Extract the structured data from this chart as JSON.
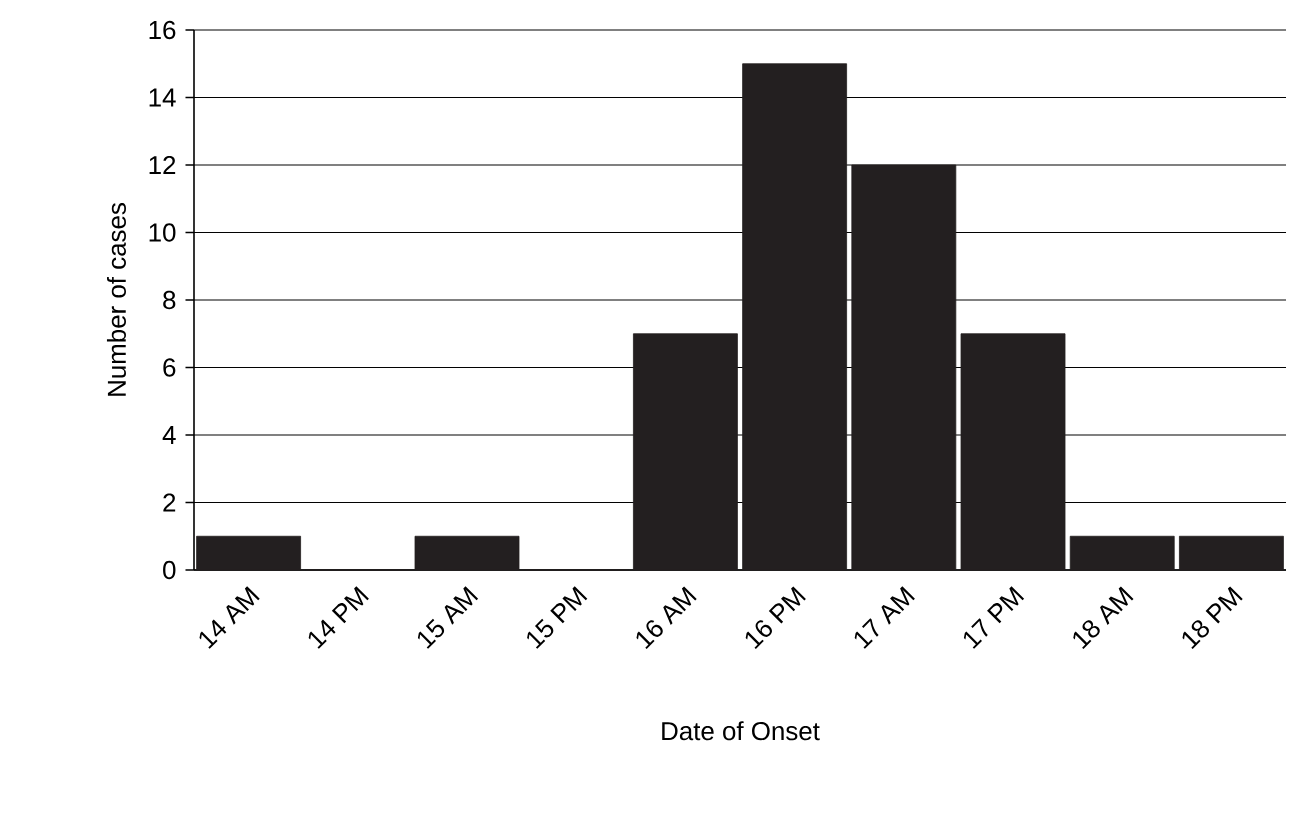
{
  "chart_data": {
    "type": "bar",
    "xlabel": "Date of Onset",
    "ylabel": "Number of cases",
    "categories": [
      "14 AM",
      "14 PM",
      "15 AM",
      "15 PM",
      "16 AM",
      "16 PM",
      "17 AM",
      "17 PM",
      "18 AM",
      "18 PM"
    ],
    "values": [
      1,
      0,
      1,
      0,
      7,
      15,
      12,
      7,
      1,
      1
    ],
    "color": "#231f20",
    "ylim": [
      0,
      16
    ],
    "yticks": [
      0,
      2,
      4,
      6,
      8,
      10,
      12,
      14,
      16
    ],
    "grid": "y"
  }
}
